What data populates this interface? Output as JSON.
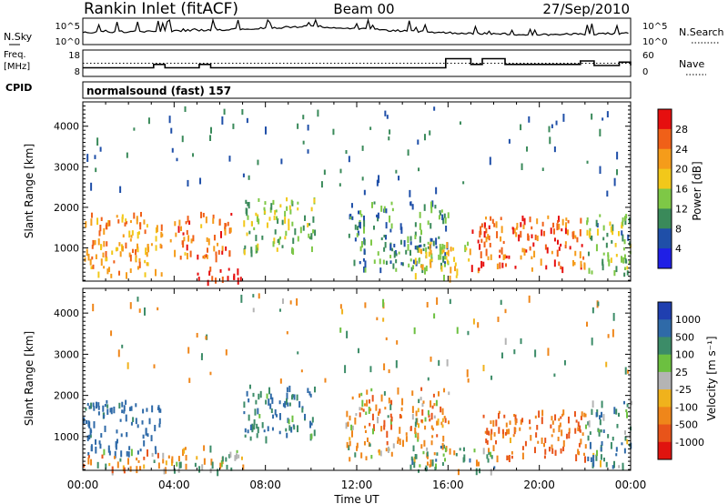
{
  "header": {
    "title": "Rankin Inlet (fitACF)",
    "beam": "Beam 00",
    "date": "27/Sep/2010"
  },
  "noise_panel": {
    "left_label": "N.Sky",
    "left_ticks": [
      "10^5",
      "10^0"
    ],
    "right_label": "N.Search",
    "right_ticks": [
      "10^5",
      "10^0"
    ]
  },
  "freq_panel": {
    "left_label_1": "Freq.",
    "left_label_2": "[MHz]",
    "left_ticks": [
      "18",
      "8"
    ],
    "right_label": "Nave",
    "right_ticks": [
      "60",
      "0"
    ]
  },
  "cpid": {
    "label": "CPID",
    "text": "normalsound (fast) 157"
  },
  "power_panel": {
    "ylabel": "Slant Range [km]",
    "y_ticks": [
      "1000",
      "2000",
      "3000",
      "4000"
    ],
    "colorbar_label": "Power [dB]",
    "colorbar_ticks": [
      "4",
      "8",
      "12",
      "16",
      "20",
      "24",
      "28"
    ],
    "colors": [
      "#1f1fe6",
      "#1f4fa8",
      "#3a8a5a",
      "#7ec846",
      "#f2c81a",
      "#f59c1a",
      "#f06018",
      "#e60f0f"
    ]
  },
  "velocity_panel": {
    "ylabel": "Slant Range [km]",
    "y_ticks": [
      "1000",
      "2000",
      "3000",
      "4000"
    ],
    "colorbar_label": "Velocity [m s⁻¹]",
    "colorbar_ticks": [
      "1000",
      "500",
      "100",
      "25",
      "-25",
      "-100",
      "-500",
      "-1000"
    ],
    "colors": [
      "#1f3fb0",
      "#2f6aa8",
      "#3c8c68",
      "#6cc040",
      "#b4b4b4",
      "#f0b21c",
      "#ef861a",
      "#e8541a",
      "#e0140f"
    ]
  },
  "x_axis": {
    "label": "Time UT",
    "ticks": [
      "00:00",
      "04:00",
      "08:00",
      "12:00",
      "16:00",
      "20:00",
      "00:00"
    ]
  },
  "chart_data": {
    "type": "heatmap",
    "title": "Rankin Inlet (fitACF)",
    "xlabel": "Time UT",
    "ylabel": "Slant Range [km]",
    "xlim": [
      "00:00",
      "24:00"
    ],
    "ylim": [
      180,
      4600
    ],
    "panels": [
      {
        "name": "Power [dB]",
        "colorbar_range": [
          0,
          30
        ],
        "colorbar_ticks": [
          4,
          8,
          12,
          16,
          20,
          24,
          28
        ],
        "echo_regions": [
          {
            "t0": 0.0,
            "t1": 3.5,
            "r0": 350,
            "r1": 1900,
            "value": 22
          },
          {
            "t0": 3.8,
            "t1": 6.5,
            "r0": 800,
            "r1": 1900,
            "value": 24
          },
          {
            "t0": 5.0,
            "t1": 7.0,
            "r0": 200,
            "r1": 600,
            "value": 29
          },
          {
            "t0": 7.0,
            "t1": 10.2,
            "r0": 900,
            "r1": 2300,
            "value": 14
          },
          {
            "t0": 11.5,
            "t1": 16.0,
            "r0": 500,
            "r1": 2200,
            "value": 10
          },
          {
            "t0": 14.5,
            "t1": 17.0,
            "r0": 300,
            "r1": 1200,
            "value": 18
          },
          {
            "t0": 17.0,
            "t1": 22.0,
            "r0": 500,
            "r1": 1800,
            "value": 26
          },
          {
            "t0": 22.0,
            "t1": 24.0,
            "r0": 300,
            "r1": 1900,
            "value": 12
          }
        ]
      },
      {
        "name": "Velocity [m s-1]",
        "colorbar_range": [
          -1000,
          1000
        ],
        "colorbar_ticks": [
          1000,
          500,
          100,
          25,
          -25,
          -100,
          -500,
          -1000
        ],
        "echo_regions": [
          {
            "t0": 0.0,
            "t1": 3.5,
            "r0": 600,
            "r1": 1900,
            "value": 500
          },
          {
            "t0": 0.0,
            "t1": 4.0,
            "r0": 200,
            "r1": 700,
            "value": -150
          },
          {
            "t0": 4.0,
            "t1": 7.0,
            "r0": 200,
            "r1": 800,
            "value": 0
          },
          {
            "t0": 7.0,
            "t1": 10.2,
            "r0": 1000,
            "r1": 2300,
            "value": 300
          },
          {
            "t0": 11.5,
            "t1": 16.0,
            "r0": 500,
            "r1": 2200,
            "value": -150
          },
          {
            "t0": 14.0,
            "t1": 18.0,
            "r0": 200,
            "r1": 800,
            "value": 100
          },
          {
            "t0": 17.5,
            "t1": 22.0,
            "r0": 500,
            "r1": 1700,
            "value": -300
          },
          {
            "t0": 22.0,
            "t1": 24.0,
            "r0": 300,
            "r1": 1900,
            "value": 200
          }
        ]
      }
    ],
    "frequency_mhz": [
      {
        "t": 0,
        "value": 11
      },
      {
        "t": 3,
        "value": 11
      },
      {
        "t": 3.1,
        "value": 12.5
      },
      {
        "t": 3.6,
        "value": 11
      },
      {
        "t": 5,
        "value": 11
      },
      {
        "t": 5.1,
        "value": 12.5
      },
      {
        "t": 5.6,
        "value": 11
      },
      {
        "t": 15.8,
        "value": 11
      },
      {
        "t": 15.9,
        "value": 15
      },
      {
        "t": 17.0,
        "value": 12.5
      },
      {
        "t": 17.5,
        "value": 15
      },
      {
        "t": 18.5,
        "value": 12.5
      },
      {
        "t": 21.8,
        "value": 14
      },
      {
        "t": 22.4,
        "value": 12
      },
      {
        "t": 23.5,
        "value": 13.5
      },
      {
        "t": 24,
        "value": 12
      }
    ],
    "nave": [
      {
        "t": 0,
        "value": 30
      },
      {
        "t": 24,
        "value": 30
      }
    ],
    "noise_sky_log10": [
      {
        "t": 0,
        "value": 2.5
      },
      {
        "t": 4,
        "value": 2.8
      },
      {
        "t": 8,
        "value": 3.3
      },
      {
        "t": 10,
        "value": 3.8
      },
      {
        "t": 12,
        "value": 3.2
      },
      {
        "t": 16,
        "value": 2.4
      },
      {
        "t": 20,
        "value": 2.0
      },
      {
        "t": 24,
        "value": 2.3
      }
    ]
  }
}
